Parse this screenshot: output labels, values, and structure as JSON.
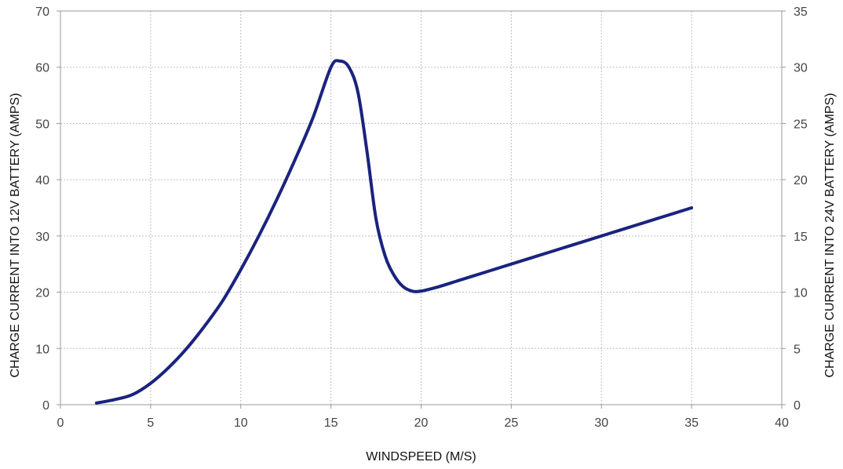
{
  "chart_data": {
    "type": "line",
    "xlabel": "WINDSPEED (M/S)",
    "ylabel": "CHARGE CURRENT INTO 12V BATTERY (AMPS)",
    "y2label": "CHARGE CURRENT INTO 24V BATTERY (AMPS)",
    "xlim": [
      0,
      40
    ],
    "ylim": [
      0,
      70
    ],
    "y2lim": [
      0,
      35
    ],
    "xticks": [
      0,
      5,
      10,
      15,
      20,
      25,
      30,
      35,
      40
    ],
    "yticks": [
      0,
      10,
      20,
      30,
      40,
      50,
      60,
      70
    ],
    "y2ticks": [
      0,
      5,
      10,
      15,
      20,
      25,
      30,
      35
    ],
    "grid": true,
    "series": [
      {
        "color": "#1a237e",
        "x": [
          2,
          3,
          4,
          5,
          6,
          7,
          8,
          9,
          10,
          11,
          12,
          13,
          14,
          15,
          15.5,
          16,
          16.5,
          17,
          17.5,
          18,
          18.5,
          19,
          19.5,
          20,
          21,
          22,
          23,
          24,
          25,
          26,
          27,
          28,
          29,
          30,
          31,
          32,
          33,
          34,
          35
        ],
        "y": [
          0.3,
          0.9,
          1.8,
          3.8,
          6.6,
          10,
          14,
          18.5,
          24,
          30,
          36.5,
          43.5,
          51,
          60,
          61.1,
          60,
          55.5,
          45,
          33,
          26.5,
          23,
          21,
          20.2,
          20.2,
          21,
          22,
          23,
          24,
          25,
          26,
          27,
          28,
          29,
          30,
          31,
          32,
          33,
          34,
          35
        ]
      }
    ]
  }
}
